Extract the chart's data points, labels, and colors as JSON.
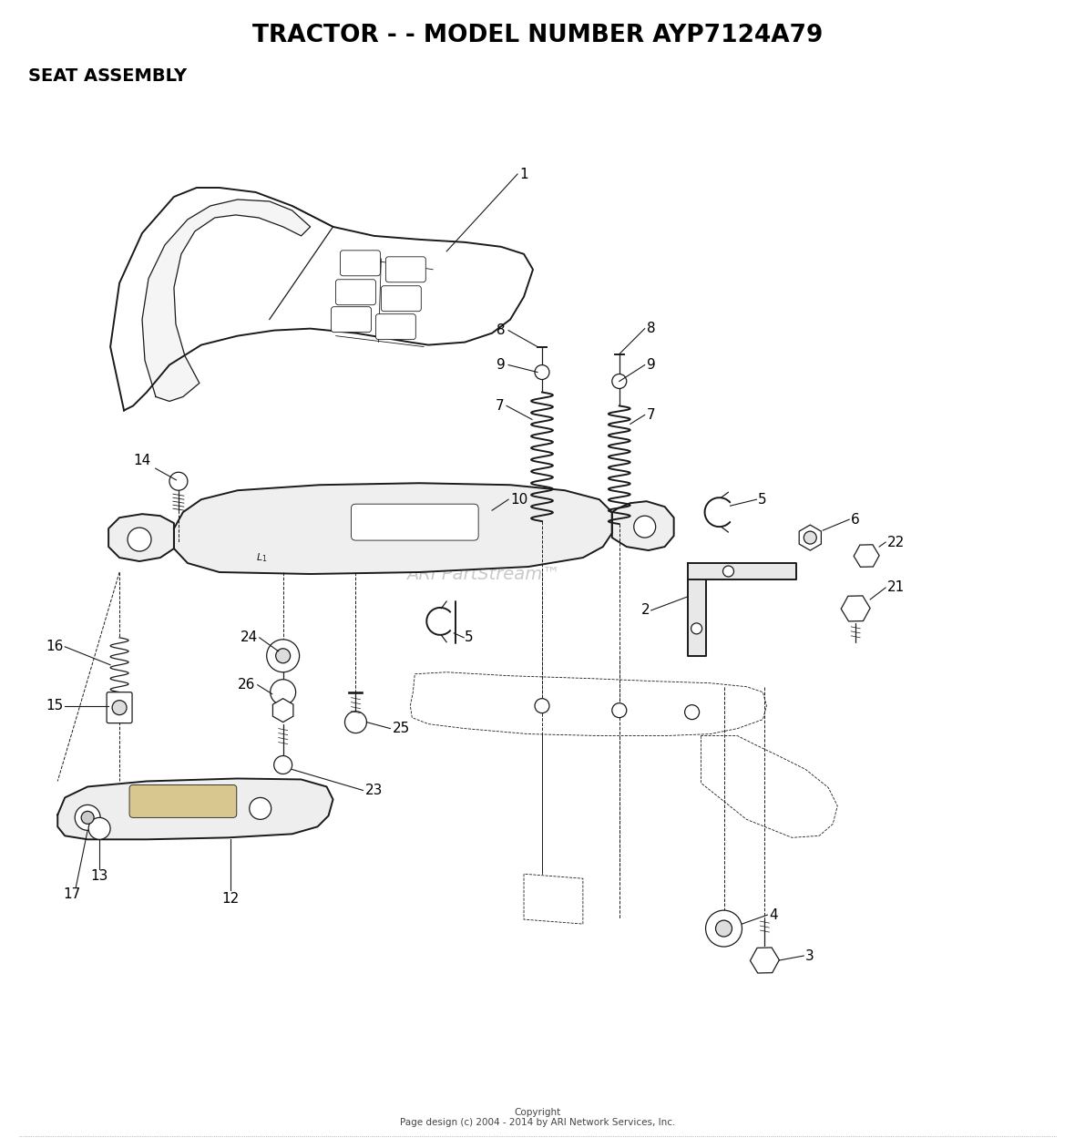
{
  "title": "TRACTOR - - MODEL NUMBER AYP7124A79",
  "subtitle": "SEAT ASSEMBLY",
  "copyright": "Copyright\nPage design (c) 2004 - 2014 by ARI Network Services, Inc.",
  "watermark": "ARI PartStream™",
  "bg": "#ffffff",
  "lc": "#1a1a1a"
}
